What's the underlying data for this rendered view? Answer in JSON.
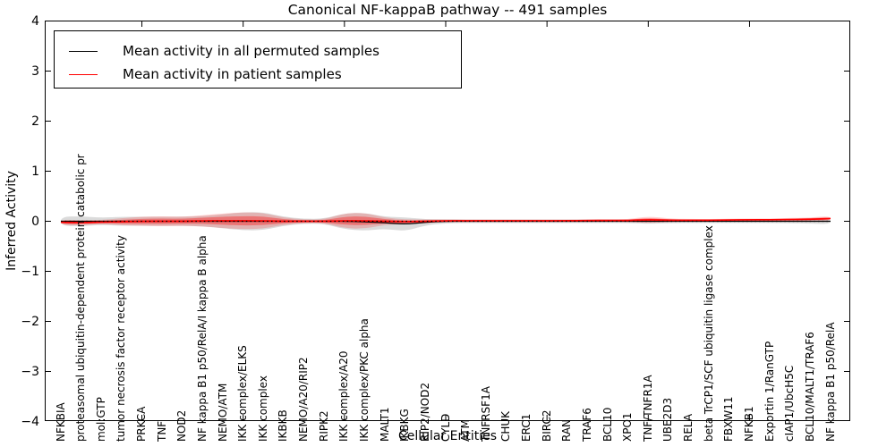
{
  "chart_data": {
    "type": "line",
    "subtype": "violin-band-with-mean-lines",
    "title": "Canonical NF-kappaB pathway -- 491 samples",
    "xlabel": "Cellular Entities",
    "ylabel": "Inferred Activity",
    "ylim": [
      -4,
      4
    ],
    "grid": false,
    "legend_position": "upper left",
    "ytick_values": [
      4,
      3,
      2,
      1,
      0,
      -1,
      -2,
      -3,
      -4
    ],
    "ytick_labels": [
      "4",
      "3",
      "2",
      "1",
      "0",
      "−1",
      "−2",
      "−3",
      "−4"
    ],
    "xtick_major_positions": [
      5,
      10,
      15,
      20,
      25,
      30,
      35
    ],
    "categories": [
      "NFKBIA",
      "proteasomal ubiquitin-dependent protein catabolic pr",
      "mol:GTP",
      "tumor necrosis factor receptor activity",
      "PRKCA",
      "TNF",
      "NOD2",
      "NF kappa B1 p50/RelA/I kappa B alpha",
      "NEMO/ATM",
      "IKK complex/ELKS",
      "IKK complex",
      "IKBKB",
      "NEMO/A20/RIP2",
      "RIPK2",
      "IKK complex/A20",
      "IKK complex/PKC alpha",
      "MALT1",
      "IKBKG",
      "RIP2/NOD2",
      "CYLD",
      "ATM",
      "TNFRSF1A",
      "CHUK",
      "ERC1",
      "BIRC2",
      "RAN",
      "TRAF6",
      "BCL10",
      "XPO1",
      "TNF/TNFR1A",
      "UBE2D3",
      "RELA",
      "beta TrCP1/SCF ubiquitin ligase complex",
      "FBXW11",
      "NFKB1",
      "Exportin 1/RanGTP",
      "cIAP1/UbcH5C",
      "BCL10/MALT1/TRAF6",
      "NF kappa B1 p50/RelA"
    ],
    "series": [
      {
        "name": "Mean activity in all permuted samples",
        "color": "#000000",
        "values": [
          0,
          0,
          0,
          0,
          0,
          0,
          0,
          0,
          0,
          0,
          0,
          0,
          0,
          0,
          0,
          -0.01,
          -0.03,
          -0.06,
          -0.02,
          0,
          0,
          0,
          0,
          0,
          0,
          0,
          0,
          0,
          0,
          0,
          0,
          0,
          0,
          0,
          0,
          0,
          0,
          0,
          0
        ]
      },
      {
        "name": "Mean activity in patient samples",
        "color": "#ff0000",
        "values": [
          -0.02,
          -0.03,
          -0.015,
          -0.01,
          0,
          0,
          0,
          0.01,
          0.01,
          0.01,
          0.01,
          0,
          0,
          0,
          0.01,
          0.01,
          0,
          -0.01,
          0,
          0.01,
          0.01,
          0.01,
          0.01,
          0.01,
          0.01,
          0.01,
          0.015,
          0.015,
          0.015,
          0.03,
          0.02,
          0.02,
          0.02,
          0.025,
          0.03,
          0.03,
          0.035,
          0.04,
          0.055
        ]
      }
    ],
    "band_halfwidth_patient": [
      0.055,
      0.05,
      0.04,
      0.07,
      0.09,
      0.1,
      0.09,
      0.11,
      0.145,
      0.17,
      0.16,
      0.07,
      0.035,
      0.035,
      0.15,
      0.16,
      0.07,
      0.045,
      0.035,
      0.03,
      0.025,
      0.025,
      0.025,
      0.025,
      0.025,
      0.025,
      0.025,
      0.025,
      0.025,
      0.07,
      0.035,
      0.025,
      0.025,
      0.025,
      0.025,
      0.025,
      0.03,
      0.035,
      0.05
    ],
    "band_halfwidth_permuted": [
      0.09,
      0.1,
      0.07,
      0.09,
      0.09,
      0.09,
      0.09,
      0.1,
      0.14,
      0.18,
      0.18,
      0.09,
      0.05,
      0.05,
      0.16,
      0.18,
      0.12,
      0.14,
      0.06,
      0.04,
      0.035,
      0.035,
      0.035,
      0.035,
      0.035,
      0.035,
      0.035,
      0.035,
      0.035,
      0.05,
      0.04,
      0.035,
      0.035,
      0.035,
      0.035,
      0.035,
      0.04,
      0.045,
      0.06
    ],
    "zero_line_value": 0,
    "colors": {
      "patient_line": "#ff0000",
      "permuted_line": "#000000",
      "patient_band": "rgba(255,0,0,0.18)",
      "patient_band_core": "rgba(255,0,0,0.35)",
      "permuted_band": "rgba(90,90,90,0.22)",
      "zero_dotted": "#000000"
    },
    "legend": [
      {
        "label": "Mean activity in all permuted samples",
        "color": "#000000"
      },
      {
        "label": "Mean activity in patient samples",
        "color": "#ff0000"
      }
    ]
  }
}
